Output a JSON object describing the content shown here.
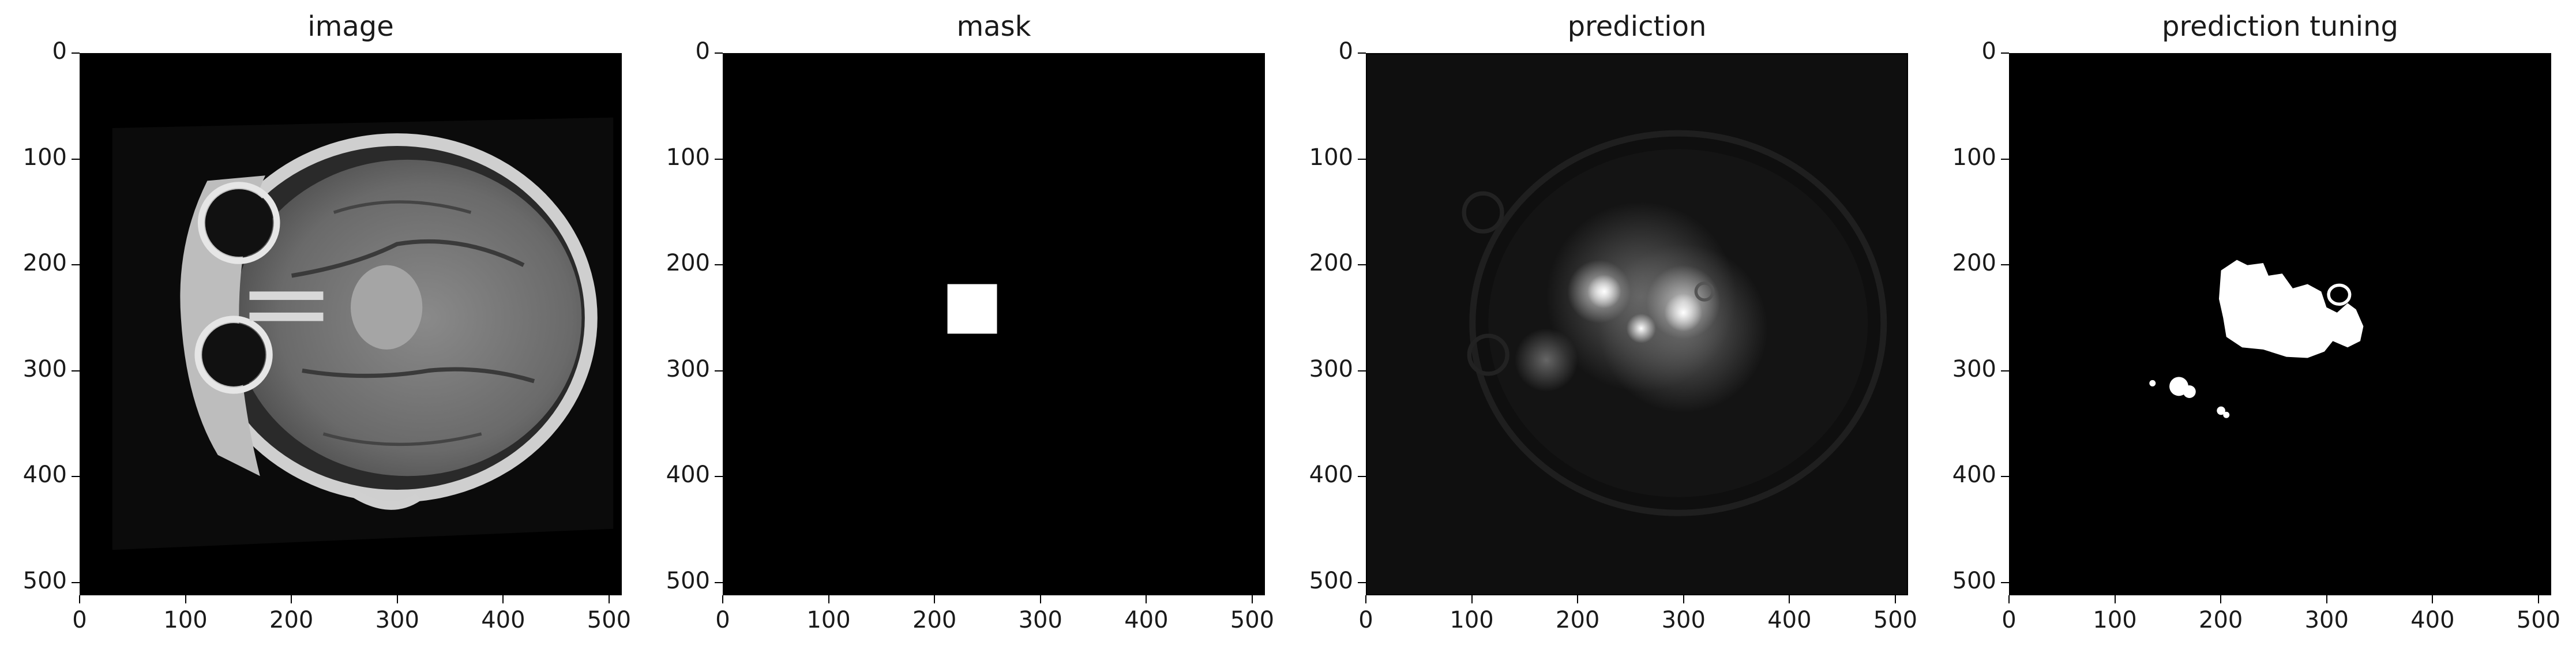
{
  "panels": [
    {
      "title": "image"
    },
    {
      "title": "mask"
    },
    {
      "title": "prediction"
    },
    {
      "title": "prediction tuning"
    }
  ],
  "ticks": {
    "x": [
      "0",
      "100",
      "200",
      "300",
      "400",
      "500"
    ],
    "y": [
      "0",
      "100",
      "200",
      "300",
      "400",
      "500"
    ]
  },
  "colors": {
    "background": "#000000",
    "foreground": "#ffffff"
  }
}
